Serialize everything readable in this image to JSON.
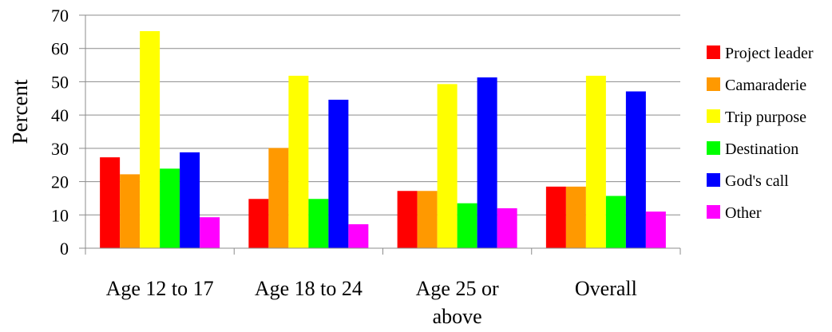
{
  "chart_data": {
    "type": "bar",
    "ylabel": "Percent",
    "xlabel": "",
    "ylim": [
      0,
      70
    ],
    "yticks": [
      0,
      10,
      20,
      30,
      40,
      50,
      60,
      70
    ],
    "grid": true,
    "legend_position": "right",
    "categories": [
      "Age 12 to 17",
      "Age 18 to 24",
      "Age 25 or above",
      "Overall"
    ],
    "category_label_lines": [
      [
        "Age 12 to 17"
      ],
      [
        "Age 18 to 24"
      ],
      [
        "Age 25 or",
        "above"
      ],
      [
        "Overall"
      ]
    ],
    "series": [
      {
        "name": "Project leader",
        "color": "#ff0000",
        "values": [
          27.3,
          14.8,
          17.2,
          18.5
        ]
      },
      {
        "name": "Camaraderie",
        "color": "#ff9900",
        "values": [
          22.2,
          30.1,
          17.2,
          18.5
        ]
      },
      {
        "name": "Trip purpose",
        "color": "#ffff00",
        "values": [
          65.2,
          51.8,
          49.3,
          51.8
        ]
      },
      {
        "name": "Destination",
        "color": "#00ff00",
        "values": [
          23.9,
          14.8,
          13.5,
          15.7
        ]
      },
      {
        "name": "God's call",
        "color": "#0000ff",
        "values": [
          28.8,
          44.6,
          51.3,
          47.1
        ]
      },
      {
        "name": "Other",
        "color": "#ff00ff",
        "values": [
          9.3,
          7.2,
          12.0,
          11.0
        ]
      }
    ]
  }
}
